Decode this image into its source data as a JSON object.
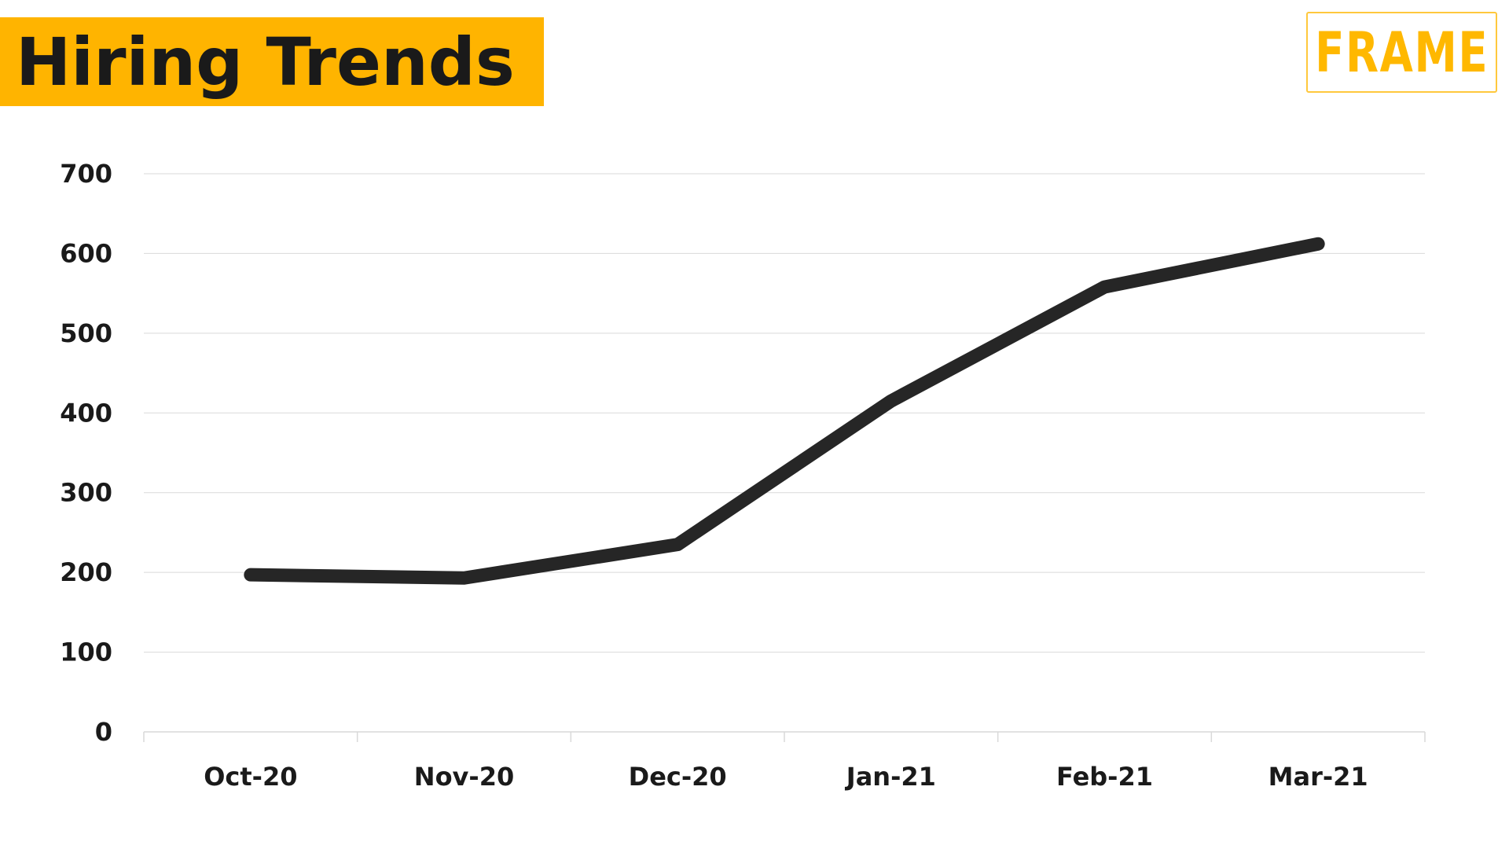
{
  "header": {
    "title": "Hiring Trends",
    "logo": "FRAME"
  },
  "colors": {
    "banner": "#ffb400",
    "logo": "#ffb800",
    "line": "#262626",
    "grid": "#d9d9d9",
    "text": "#1a1a1a"
  },
  "chart_data": {
    "type": "line",
    "categories": [
      "Oct-20",
      "Nov-20",
      "Dec-20",
      "Jan-21",
      "Feb-21",
      "Mar-21"
    ],
    "series": [
      {
        "values": [
          197,
          193,
          235,
          415,
          558,
          612
        ]
      }
    ],
    "yticks": [
      "0",
      "100",
      "200",
      "300",
      "400",
      "500",
      "600",
      "700"
    ],
    "ylim": [
      0,
      700
    ],
    "grid": true,
    "legend": "none"
  }
}
